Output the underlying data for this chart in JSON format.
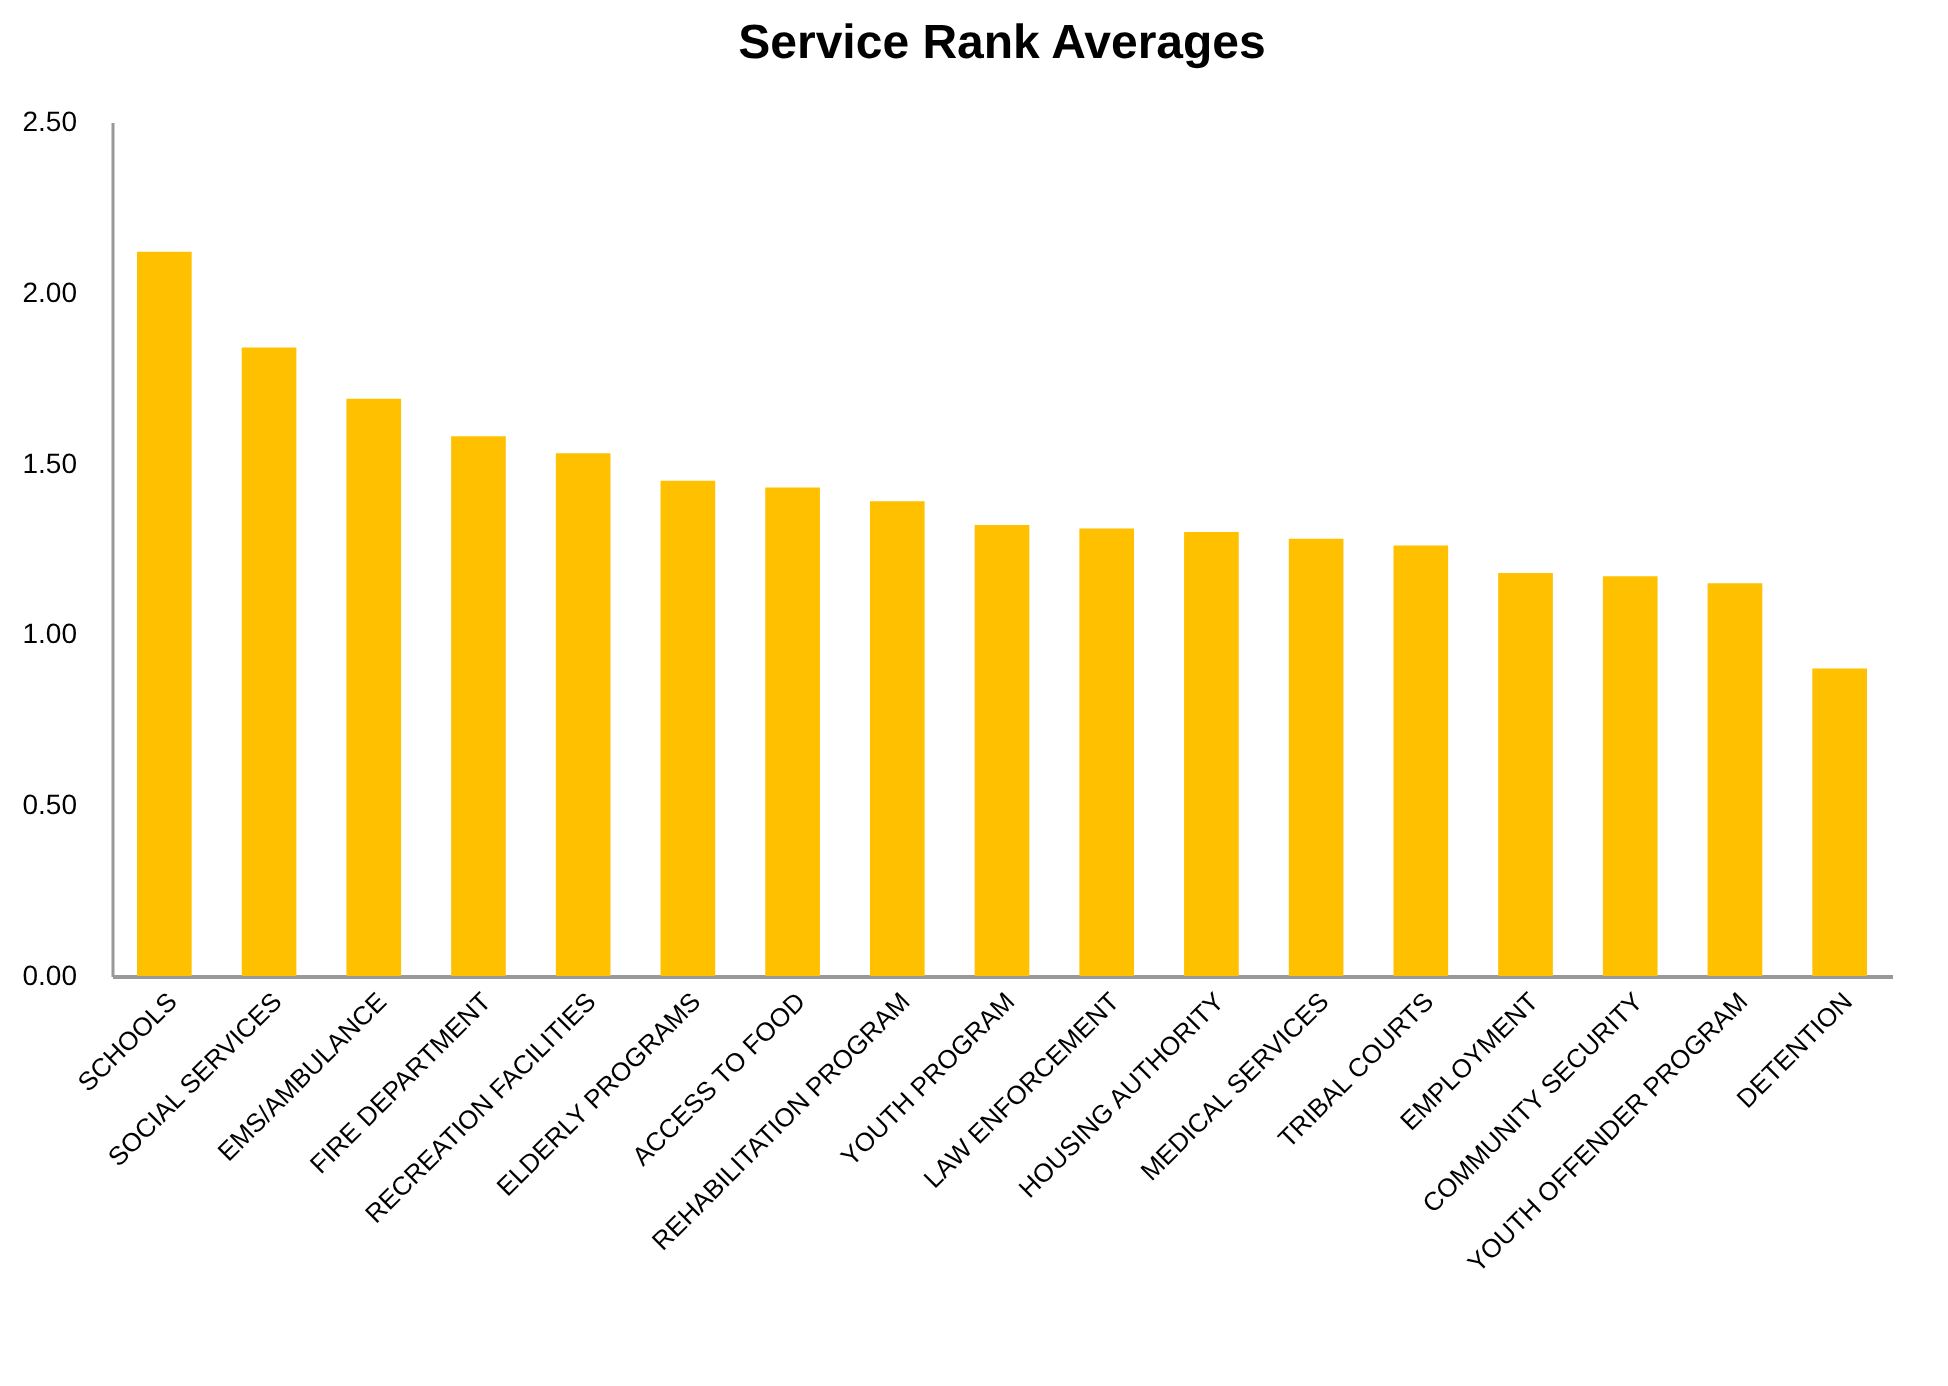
{
  "chart_data": {
    "type": "bar",
    "title": "Service Rank Averages",
    "categories": [
      "SCHOOLS",
      "SOCIAL SERVICES",
      "EMS/AMBULANCE",
      "FIRE DEPARTMENT",
      "RECREATION FACILITIES",
      "ELDERLY PROGRAMS",
      "ACCESS TO FOOD",
      "REHABILITATION PROGRAM",
      "YOUTH PROGRAM",
      "LAW ENFORCEMENT",
      "HOUSING AUTHORITY",
      "MEDICAL SERVICES",
      "TRIBAL COURTS",
      "EMPLOYMENT",
      "COMMUNITY SECURITY",
      "YOUTH OFFENDER PROGRAM",
      "DETENTION"
    ],
    "values": [
      2.12,
      1.84,
      1.69,
      1.58,
      1.53,
      1.45,
      1.43,
      1.39,
      1.32,
      1.31,
      1.3,
      1.28,
      1.26,
      1.18,
      1.17,
      1.15,
      0.9
    ],
    "color": "#ffc000",
    "ylim": [
      0,
      2.5
    ],
    "yticks": [
      {
        "value": 0,
        "label": "0.00"
      },
      {
        "value": 0.5,
        "label": "0.50"
      },
      {
        "value": 1,
        "label": "1.00"
      },
      {
        "value": 1.5,
        "label": "1.50"
      },
      {
        "value": 2,
        "label": "2.00"
      },
      {
        "value": 2.5,
        "label": "2.50"
      }
    ]
  }
}
